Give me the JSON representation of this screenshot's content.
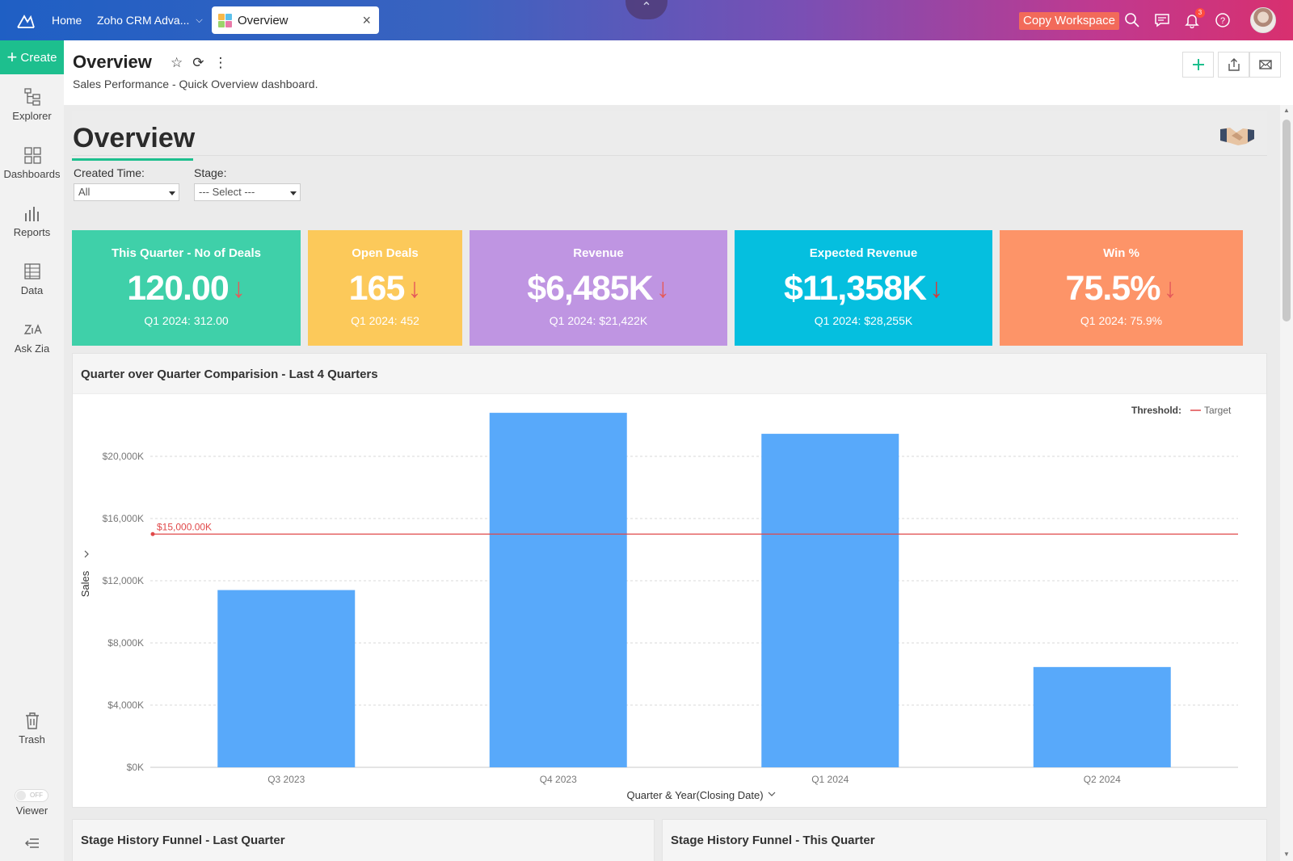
{
  "topbar": {
    "home": "Home",
    "workspace": "Zoho CRM Adva...",
    "tab_label": "Overview",
    "copy_workspace": "Copy Workspace",
    "notification_count": "3"
  },
  "sidebar": {
    "create": "Create",
    "items": [
      {
        "label": "Explorer",
        "icon": "explorer-icon"
      },
      {
        "label": "Dashboards",
        "icon": "dashboards-icon"
      },
      {
        "label": "Reports",
        "icon": "reports-icon"
      },
      {
        "label": "Data",
        "icon": "data-icon"
      },
      {
        "label": "Ask Zia",
        "icon": "zia-icon"
      },
      {
        "label": "Trash",
        "icon": "trash-icon"
      }
    ],
    "viewer_label": "Viewer",
    "viewer_toggle": "OFF"
  },
  "header": {
    "title": "Overview",
    "description": "Sales Performance - Quick Overview dashboard."
  },
  "dashboard": {
    "title": "Overview",
    "filters": [
      {
        "label": "Created Time:",
        "value": "All"
      },
      {
        "label": "Stage:",
        "value": "--- Select ---"
      }
    ]
  },
  "kpis": [
    {
      "label": "This Quarter - No of Deals",
      "value": "120.00",
      "arrow": "↓",
      "compare": "Q1 2024: 312.00",
      "color": "#3fd0a9",
      "arrow_color": "#e55a5a"
    },
    {
      "label": "Open Deals",
      "value": "165",
      "arrow": "↓",
      "compare": "Q1 2024: 452",
      "color": "#fcc95a",
      "arrow_color": "#e55a5a"
    },
    {
      "label": "Revenue",
      "value": "$6,485K",
      "arrow": "↓",
      "compare": "Q1 2024: $21,422K",
      "color": "#bf95e2",
      "arrow_color": "#e55a5a"
    },
    {
      "label": "Expected Revenue",
      "value": "$11,358K",
      "arrow": "↓",
      "compare": "Q1 2024: $28,255K",
      "color": "#05bfdf",
      "arrow_color": "#d63a3a"
    },
    {
      "label": "Win %",
      "value": "75.5%",
      "arrow": "↓",
      "compare": "Q1 2024: 75.9%",
      "color": "#fd9468",
      "arrow_color": "#e55a5a"
    }
  ],
  "chart_data": {
    "type": "bar",
    "title": "Quarter over Quarter Comparision - Last 4 Quarters",
    "categories": [
      "Q3 2023",
      "Q4 2023",
      "Q1 2024",
      "Q2 2024"
    ],
    "series": [
      {
        "values": [
          11400,
          22800,
          21450,
          6450
        ]
      }
    ],
    "xlabel": "Quarter & Year(Closing Date)",
    "ylabel": "Sales",
    "ylim": [
      0,
      24000
    ],
    "y_ticks": [
      "$0K",
      "$4,000K",
      "$8,000K",
      "$12,000K",
      "$16,000K",
      "$20,000K"
    ],
    "y_tick_values": [
      0,
      4000,
      8000,
      12000,
      16000,
      20000
    ],
    "threshold": {
      "title": "Threshold:",
      "name": "Target",
      "value": 15000,
      "label": "$15,000.00K",
      "color": "#e0494a"
    },
    "bar_color": "#58a9fa",
    "grid": true,
    "legend": "top-right"
  },
  "bottom_panels": [
    {
      "title": "Stage History Funnel - Last Quarter"
    },
    {
      "title": "Stage History Funnel - This Quarter"
    }
  ]
}
